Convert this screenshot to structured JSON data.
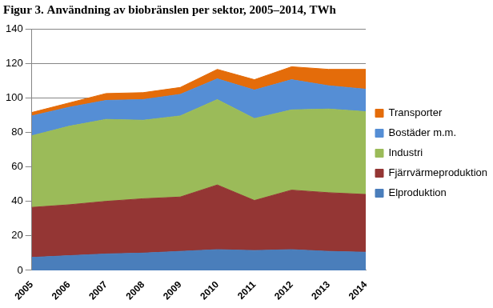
{
  "chart_data": {
    "type": "area",
    "title": "Figur 3. Användning av biobränslen per sektor, 2005–2014, TWh",
    "categories": [
      "2005",
      "2006",
      "2007",
      "2008",
      "2009",
      "2010",
      "2011",
      "2012",
      "2013",
      "2014"
    ],
    "series": [
      {
        "name": "Elproduktion",
        "color": "#4a7ebb",
        "values": [
          7.5,
          8.5,
          9.5,
          10,
          11,
          12,
          11.5,
          12,
          11,
          10.5
        ]
      },
      {
        "name": "Fjärrvärmeproduktion",
        "color": "#943634",
        "values": [
          29,
          29.5,
          30.5,
          31.5,
          31.5,
          37.5,
          29,
          34.5,
          34,
          33.5
        ]
      },
      {
        "name": "Industri",
        "color": "#9bbb59",
        "values": [
          41.5,
          45.5,
          47.5,
          45.5,
          47,
          49.5,
          47.5,
          46.5,
          48.5,
          48
        ]
      },
      {
        "name": "Bostäder m.m.",
        "color": "#558ed5",
        "values": [
          11.5,
          11,
          11,
          12,
          12.5,
          12,
          16.5,
          17.5,
          13.5,
          13
        ]
      },
      {
        "name": "Transporter",
        "color": "#e46c0a",
        "values": [
          2,
          2.5,
          4,
          4,
          4,
          5.5,
          6,
          7.5,
          9.5,
          11.5
        ]
      }
    ],
    "stacked": true,
    "ylim": [
      0,
      140
    ],
    "yticks": [
      0,
      20,
      40,
      60,
      80,
      100,
      120,
      140
    ],
    "grid": true,
    "legend": "right"
  }
}
